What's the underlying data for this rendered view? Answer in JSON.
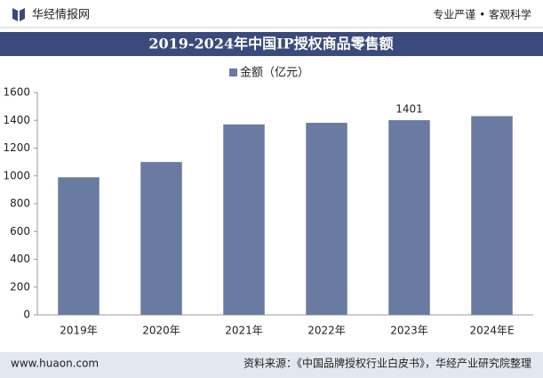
{
  "header": {
    "brand": "华经情报网",
    "slogan": "专业严谨 • 客观科学"
  },
  "chart_data": {
    "type": "bar",
    "title": "2019-2024年中国IP授权商品零售额",
    "categories": [
      "2019年",
      "2020年",
      "2021年",
      "2022年",
      "2023年",
      "2024年E"
    ],
    "series": [
      {
        "name": "金额（亿元）",
        "color": "#6a7ba2",
        "values": [
          990,
          1100,
          1370,
          1382,
          1401,
          1430
        ],
        "value_labels": [
          null,
          null,
          null,
          null,
          "1401",
          null
        ]
      }
    ],
    "ylim": [
      0,
      1600
    ],
    "yticks": [
      0,
      200,
      400,
      600,
      800,
      1000,
      1200,
      1400,
      1600
    ],
    "grid": false
  },
  "footer": {
    "website": "www.huaon.com",
    "source": "资料来源：《中国品牌授权行业白皮书》，华经产业研究院整理"
  }
}
